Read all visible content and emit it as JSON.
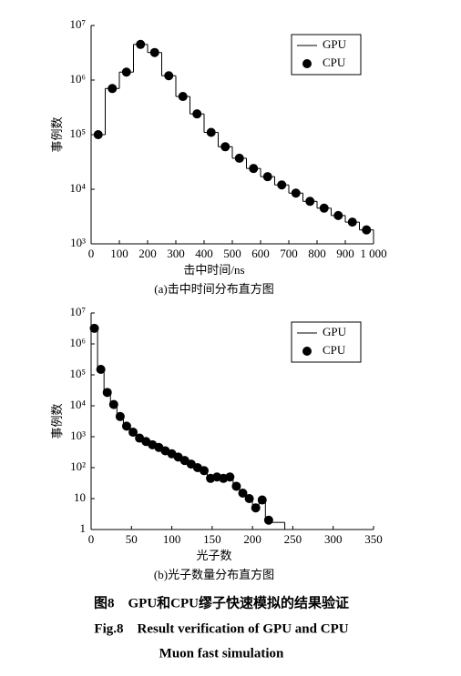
{
  "chart_data": [
    {
      "type": "histogram",
      "subtitle": "(a)击中时间分布直方图",
      "x_label": "击中时间/ns",
      "y_label": "事例数",
      "log_y": true,
      "legend": "upper right",
      "xlim": [
        0,
        1000
      ],
      "xticks": [
        0,
        100,
        200,
        300,
        400,
        500,
        600,
        700,
        800,
        900,
        {
          "value": 1000,
          "label": "1 000"
        }
      ],
      "ylim": [
        1000,
        10000000
      ],
      "yticks": [
        {
          "value": 1000,
          "label": "10³"
        },
        {
          "value": 10000,
          "label": "10⁴"
        },
        {
          "value": 100000,
          "label": "10⁵"
        },
        {
          "value": 1000000,
          "label": "10⁶"
        },
        {
          "value": 10000000,
          "label": "10⁷"
        }
      ],
      "series": [
        {
          "name": "GPU",
          "color": "#000000",
          "bins": [
            0,
            50,
            100,
            150,
            200,
            250,
            300,
            350,
            400,
            450,
            500,
            550,
            600,
            650,
            700,
            750,
            800,
            850,
            900,
            950,
            1000
          ],
          "values": [
            100000,
            700000,
            1400000,
            4500000,
            3200000,
            1200000,
            500000,
            240000,
            110000,
            60000,
            37000,
            24000,
            17000,
            12000,
            8500,
            6000,
            4500,
            3300,
            2500,
            1800
          ]
        },
        {
          "name": "CPU",
          "color": "#000000",
          "x": [
            25,
            75,
            125,
            175,
            225,
            275,
            325,
            375,
            425,
            475,
            525,
            575,
            625,
            675,
            725,
            775,
            825,
            875,
            925,
            975
          ],
          "values": [
            100000,
            700000,
            1400000,
            4500000,
            3200000,
            1200000,
            500000,
            240000,
            110000,
            60000,
            37000,
            24000,
            17000,
            12000,
            8500,
            6000,
            4500,
            3300,
            2500,
            1800
          ]
        }
      ]
    },
    {
      "type": "histogram",
      "subtitle": "(b)光子数量分布直方图",
      "x_label": "光子数",
      "y_label": "事例数",
      "log_y": true,
      "legend": "upper right",
      "xlim": [
        0,
        350
      ],
      "xticks": [
        0,
        50,
        100,
        150,
        200,
        250,
        300,
        350
      ],
      "ylim": [
        1,
        10000000
      ],
      "yticks": [
        1,
        10,
        {
          "value": 100,
          "label": "10²"
        },
        {
          "value": 1000,
          "label": "10³"
        },
        {
          "value": 10000,
          "label": "10⁴"
        },
        {
          "value": 100000,
          "label": "10⁵"
        },
        {
          "value": 1000000,
          "label": "10⁶"
        },
        {
          "value": 10000000,
          "label": "10⁷"
        }
      ],
      "series": [
        {
          "name": "GPU",
          "color": "#000000",
          "bins": [
            0,
            8,
            16,
            24,
            32,
            40,
            48,
            56,
            64,
            72,
            80,
            88,
            96,
            104,
            112,
            120,
            128,
            136,
            144,
            152,
            160,
            168,
            176,
            184,
            192,
            200,
            208,
            216,
            224,
            232,
            240
          ],
          "values": [
            3200000,
            150000,
            27000,
            11000,
            4500,
            2200,
            1400,
            900,
            700,
            550,
            450,
            350,
            280,
            220,
            170,
            130,
            100,
            80,
            45,
            50,
            45,
            50,
            25,
            15,
            10,
            5,
            9,
            2,
            1.7,
            1.7
          ]
        },
        {
          "name": "CPU",
          "color": "#000000",
          "x": [
            4,
            12,
            20,
            28,
            36,
            44,
            52,
            60,
            68,
            76,
            84,
            92,
            100,
            108,
            116,
            124,
            132,
            140,
            148,
            156,
            164,
            172,
            180,
            188,
            196,
            204,
            212,
            220
          ],
          "values": [
            3200000,
            150000,
            27000,
            11000,
            4500,
            2200,
            1400,
            900,
            700,
            550,
            450,
            350,
            280,
            220,
            170,
            130,
            100,
            80,
            45,
            50,
            45,
            50,
            25,
            15,
            10,
            5,
            9,
            2
          ]
        }
      ]
    }
  ],
  "caption": {
    "cn": "图8　GPU和CPU缪子快速模拟的结果验证",
    "en_1": "Fig.8　Result verification of GPU and CPU",
    "en_2": "Muon fast simulation"
  }
}
